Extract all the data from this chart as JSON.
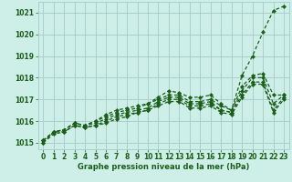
{
  "xlabel": "Graphe pression niveau de la mer (hPa)",
  "bg_color": "#ceeee8",
  "grid_color": "#aacfcc",
  "line_color": "#1a5e1a",
  "xlim": [
    -0.5,
    23.5
  ],
  "ylim": [
    1014.7,
    1021.5
  ],
  "yticks": [
    1015,
    1016,
    1017,
    1018,
    1019,
    1020,
    1021
  ],
  "xticks": [
    0,
    1,
    2,
    3,
    4,
    5,
    6,
    7,
    8,
    9,
    10,
    11,
    12,
    13,
    14,
    15,
    16,
    17,
    18,
    19,
    20,
    21,
    22,
    23
  ],
  "x_hours": [
    0,
    1,
    2,
    3,
    4,
    5,
    6,
    7,
    8,
    9,
    10,
    11,
    12,
    13,
    14,
    15,
    16,
    17,
    18,
    19,
    20,
    21,
    22,
    23
  ],
  "series": [
    [
      1015.1,
      1015.5,
      1015.6,
      1015.9,
      1015.8,
      1016.0,
      1016.2,
      1016.4,
      1016.5,
      1016.6,
      1016.8,
      1017.1,
      1017.4,
      1017.3,
      1017.1,
      1017.1,
      1017.2,
      1016.8,
      1016.5,
      1018.1,
      1019.0,
      1020.1,
      1021.1,
      1021.3
    ],
    [
      1015.1,
      1015.5,
      1015.6,
      1015.9,
      1015.8,
      1016.0,
      1016.3,
      1016.5,
      1016.6,
      1016.7,
      1016.8,
      1017.0,
      1017.2,
      1017.2,
      1016.9,
      1016.9,
      1017.0,
      1016.7,
      1016.5,
      1017.6,
      1018.1,
      1018.2,
      1017.2,
      1017.2
    ],
    [
      1015.1,
      1015.5,
      1015.6,
      1015.9,
      1015.8,
      1015.9,
      1016.1,
      1016.3,
      1016.4,
      1016.5,
      1016.6,
      1016.9,
      1017.1,
      1017.1,
      1016.8,
      1016.8,
      1016.9,
      1016.5,
      1016.4,
      1017.4,
      1018.0,
      1018.0,
      1016.8,
      1017.2
    ],
    [
      1015.0,
      1015.5,
      1015.5,
      1015.8,
      1015.7,
      1015.8,
      1016.0,
      1016.2,
      1016.3,
      1016.4,
      1016.5,
      1016.8,
      1017.0,
      1017.0,
      1016.7,
      1016.7,
      1016.8,
      1016.5,
      1016.4,
      1017.2,
      1017.8,
      1017.8,
      1016.5,
      1017.1
    ],
    [
      1015.0,
      1015.4,
      1015.5,
      1015.8,
      1015.7,
      1015.8,
      1015.9,
      1016.1,
      1016.2,
      1016.4,
      1016.5,
      1016.7,
      1016.9,
      1016.9,
      1016.6,
      1016.6,
      1016.7,
      1016.4,
      1016.3,
      1017.1,
      1017.7,
      1017.7,
      1016.4,
      1017.0
    ]
  ]
}
